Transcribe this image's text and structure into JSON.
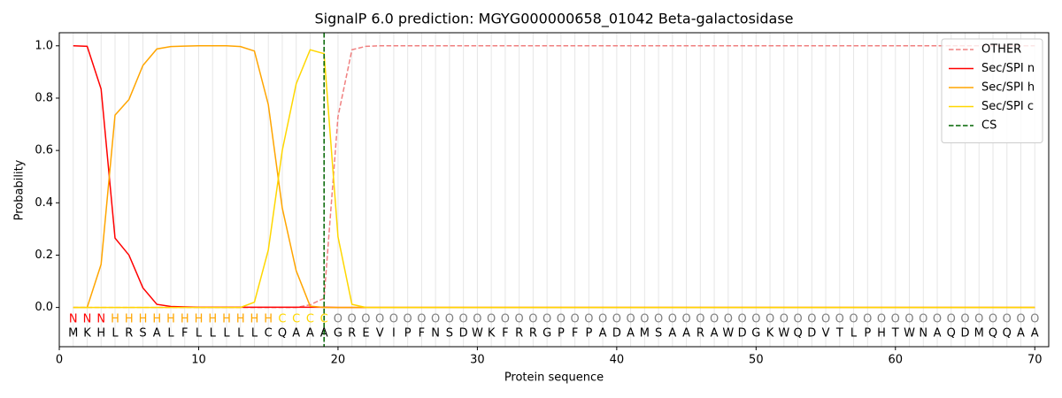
{
  "chart_data": {
    "type": "line",
    "title": "SignalP 6.0 prediction: MGYG000000658_01042 Beta-galactosidase",
    "xlabel": "Protein sequence",
    "ylabel": "Probability",
    "x": [
      1,
      2,
      3,
      4,
      5,
      6,
      7,
      8,
      9,
      10,
      11,
      12,
      13,
      14,
      15,
      16,
      17,
      18,
      19,
      20,
      21,
      22,
      23,
      24,
      25,
      26,
      27,
      28,
      29,
      30,
      31,
      32,
      33,
      34,
      35,
      36,
      37,
      38,
      39,
      40,
      41,
      42,
      43,
      44,
      45,
      46,
      47,
      48,
      49,
      50,
      51,
      52,
      53,
      54,
      55,
      56,
      57,
      58,
      59,
      60,
      61,
      62,
      63,
      64,
      65,
      66,
      67,
      68,
      69,
      70
    ],
    "series": [
      {
        "name": "OTHER",
        "color": "#f08080",
        "dashed": true,
        "values": [
          0,
          0,
          0,
          0,
          0,
          0,
          0,
          0,
          0,
          0,
          0,
          0,
          0,
          0,
          0,
          0,
          0,
          0.01,
          0.035,
          0.73,
          0.985,
          0.998,
          1,
          1,
          1,
          1,
          1,
          1,
          1,
          1,
          1,
          1,
          1,
          1,
          1,
          1,
          1,
          1,
          1,
          1,
          1,
          1,
          1,
          1,
          1,
          1,
          1,
          1,
          1,
          1,
          1,
          1,
          1,
          1,
          1,
          1,
          1,
          1,
          1,
          1,
          1,
          1,
          1,
          1,
          1,
          1,
          1,
          1,
          1,
          1
        ]
      },
      {
        "name": "Sec/SPI n",
        "color": "#ff0000",
        "dashed": false,
        "values": [
          1.0,
          0.998,
          0.835,
          0.265,
          0.2,
          0.075,
          0.012,
          0.004,
          0.002,
          0.001,
          0.001,
          0.001,
          0.001,
          0.001,
          0.001,
          0.001,
          0.001,
          0.001,
          0.001,
          0,
          0,
          0,
          0,
          0,
          0,
          0,
          0,
          0,
          0,
          0,
          0,
          0,
          0,
          0,
          0,
          0,
          0,
          0,
          0,
          0,
          0,
          0,
          0,
          0,
          0,
          0,
          0,
          0,
          0,
          0,
          0,
          0,
          0,
          0,
          0,
          0,
          0,
          0,
          0,
          0,
          0,
          0,
          0,
          0,
          0,
          0,
          0,
          0,
          0,
          0
        ]
      },
      {
        "name": "Sec/SPI h",
        "color": "#ffa500",
        "dashed": false,
        "values": [
          0,
          0,
          0.165,
          0.735,
          0.795,
          0.925,
          0.988,
          0.997,
          0.999,
          1.0,
          1.0,
          1.0,
          0.997,
          0.98,
          0.775,
          0.38,
          0.14,
          0.005,
          0,
          0,
          0,
          0,
          0,
          0,
          0,
          0,
          0,
          0,
          0,
          0,
          0,
          0,
          0,
          0,
          0,
          0,
          0,
          0,
          0,
          0,
          0,
          0,
          0,
          0,
          0,
          0,
          0,
          0,
          0,
          0,
          0,
          0,
          0,
          0,
          0,
          0,
          0,
          0,
          0,
          0,
          0,
          0,
          0,
          0,
          0,
          0,
          0,
          0,
          0,
          0
        ]
      },
      {
        "name": "Sec/SPI c",
        "color": "#ffd700",
        "dashed": false,
        "values": [
          0,
          0,
          0,
          0,
          0,
          0,
          0,
          0,
          0,
          0,
          0,
          0,
          0,
          0.02,
          0.22,
          0.6,
          0.855,
          0.985,
          0.97,
          0.27,
          0.012,
          0,
          0,
          0,
          0,
          0,
          0,
          0,
          0,
          0,
          0,
          0,
          0,
          0,
          0,
          0,
          0,
          0,
          0,
          0,
          0,
          0,
          0,
          0,
          0,
          0,
          0,
          0,
          0,
          0,
          0,
          0,
          0,
          0,
          0,
          0,
          0,
          0,
          0,
          0,
          0,
          0,
          0,
          0,
          0,
          0,
          0,
          0,
          0,
          0
        ]
      }
    ],
    "cleavage_site": {
      "name": "CS",
      "x": 19,
      "color": "#006400"
    },
    "labels": [
      "N",
      "N",
      "N",
      "H",
      "H",
      "H",
      "H",
      "H",
      "H",
      "H",
      "H",
      "H",
      "H",
      "H",
      "H",
      "C",
      "C",
      "C",
      "C",
      "O",
      "O",
      "O",
      "O",
      "O",
      "O",
      "O",
      "O",
      "O",
      "O",
      "O",
      "O",
      "O",
      "O",
      "O",
      "O",
      "O",
      "O",
      "O",
      "O",
      "O",
      "O",
      "O",
      "O",
      "O",
      "O",
      "O",
      "O",
      "O",
      "O",
      "O",
      "O",
      "O",
      "O",
      "O",
      "O",
      "O",
      "O",
      "O",
      "O",
      "O",
      "O",
      "O",
      "O",
      "O",
      "O",
      "O",
      "O",
      "O",
      "O",
      "O"
    ],
    "label_colors": {
      "N": "#ff0000",
      "H": "#ffa500",
      "C": "#ffd700",
      "O": "#808080"
    },
    "sequence": [
      "M",
      "K",
      "H",
      "L",
      "R",
      "S",
      "A",
      "L",
      "F",
      "L",
      "L",
      "L",
      "L",
      "L",
      "C",
      "Q",
      "A",
      "A",
      "A",
      "G",
      "R",
      "E",
      "V",
      "I",
      "P",
      "F",
      "N",
      "S",
      "D",
      "W",
      "K",
      "F",
      "R",
      "R",
      "G",
      "P",
      "F",
      "P",
      "A",
      "D",
      "A",
      "M",
      "S",
      "A",
      "A",
      "R",
      "A",
      "W",
      "D",
      "G",
      "K",
      "W",
      "Q",
      "D",
      "V",
      "T",
      "L",
      "P",
      "H",
      "T",
      "W",
      "N",
      "A",
      "Q",
      "D",
      "M",
      "Q",
      "Q",
      "A",
      "A"
    ],
    "xlim": [
      0,
      71
    ],
    "ylim": [
      -0.15,
      1.05
    ],
    "xticks": [
      0,
      10,
      20,
      30,
      40,
      50,
      60,
      70
    ],
    "yticks": [
      {
        "value": 0,
        "label": "0.0"
      },
      0.2,
      0.4,
      0.6,
      0.8,
      {
        "value": 1,
        "label": "1.0"
      }
    ],
    "grid_x": true,
    "legend": "upper right"
  }
}
